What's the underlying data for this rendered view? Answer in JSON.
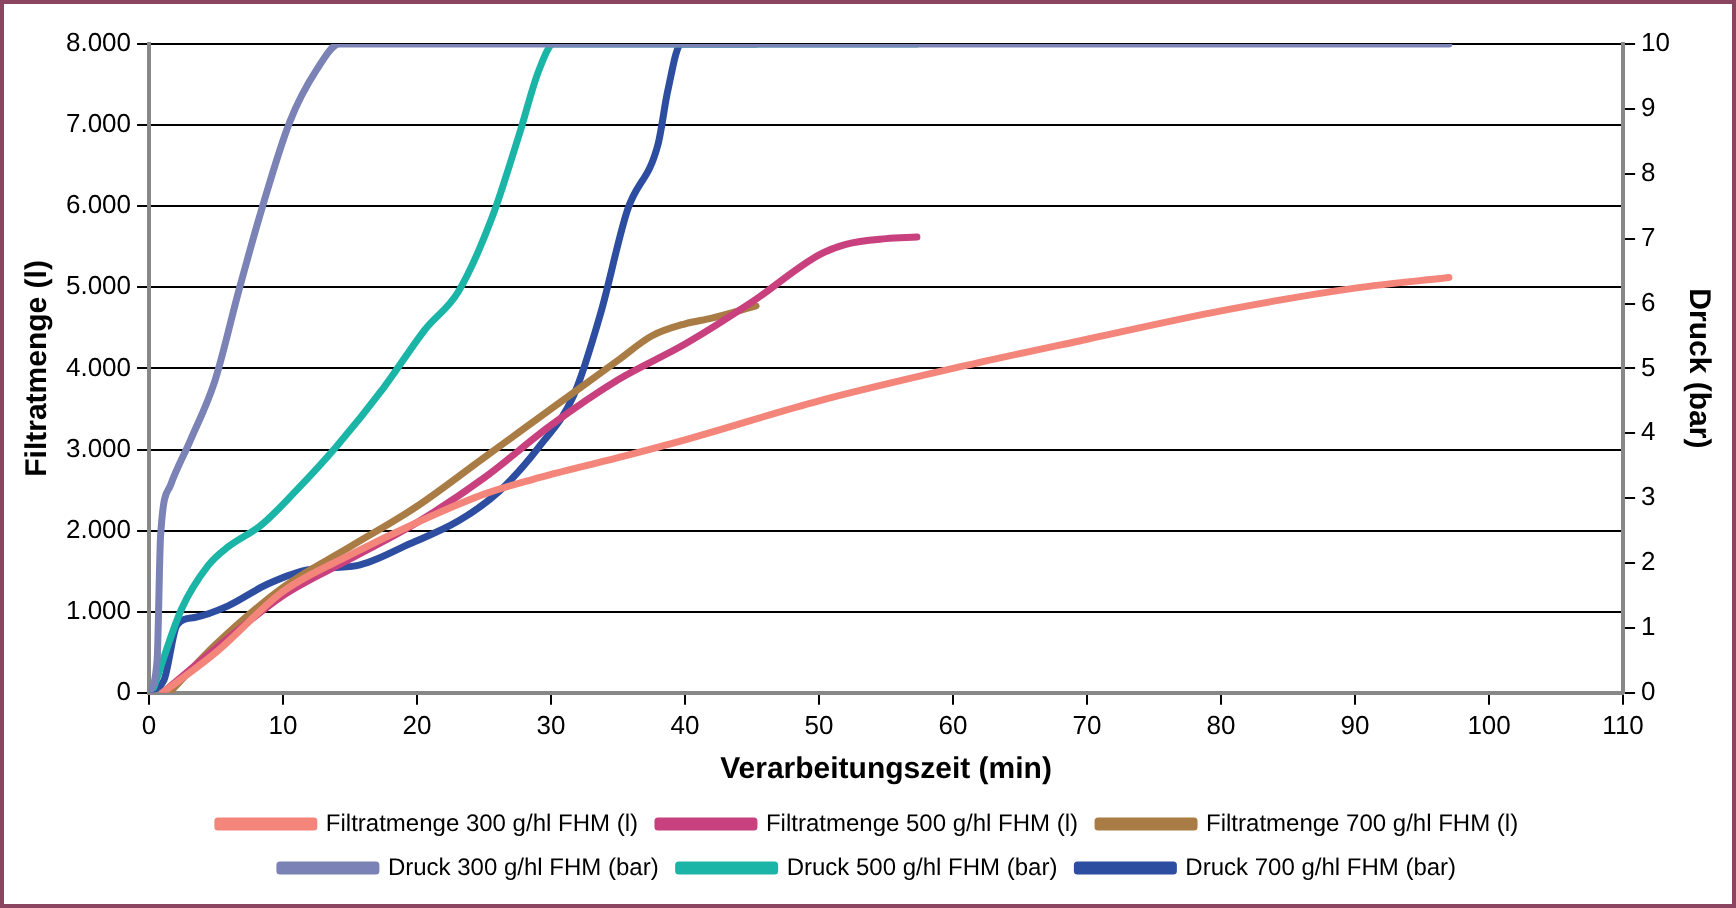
{
  "chart_data": {
    "type": "line",
    "xlabel": "Verarbeitungszeit (min)",
    "ylabel": "Filtratmenge (l)",
    "y2label": "Druck (bar)",
    "xlim": [
      0,
      110
    ],
    "xticks": [
      0,
      10,
      20,
      30,
      40,
      50,
      60,
      70,
      80,
      90,
      100,
      110
    ],
    "ylim": [
      0,
      8000
    ],
    "yticks": [
      0,
      {
        "value": 1000,
        "label": "1.000"
      },
      {
        "value": 2000,
        "label": "2.000"
      },
      {
        "value": 3000,
        "label": "3.000"
      },
      {
        "value": 4000,
        "label": "4.000"
      },
      {
        "value": 5000,
        "label": "5.000"
      },
      {
        "value": 6000,
        "label": "6.000"
      },
      {
        "value": 7000,
        "label": "7.000"
      },
      {
        "value": 8000,
        "label": "8.000"
      }
    ],
    "y2lim": [
      0,
      10
    ],
    "y2ticks": [
      0,
      1,
      2,
      3,
      4,
      5,
      6,
      7,
      8,
      9,
      10
    ],
    "grid": "y",
    "legend": "bottom",
    "marker": "none",
    "line_style": "solid",
    "series": [
      {
        "name": "Filtratmenge 300 g/hl FHM (l)",
        "color": "#f4857a",
        "x": [
          1,
          5,
          10,
          15,
          20,
          25,
          28.6,
          35,
          40,
          50,
          60,
          70,
          80,
          90,
          97
        ],
        "values": [
          0,
          500,
          1250,
          1700,
          2100,
          2450,
          2630,
          2900,
          3120,
          3600,
          4000,
          4360,
          4710,
          4990,
          5120
        ]
      },
      {
        "name": "Filtratmenge 500 g/hl FHM (l)",
        "color": "#c8417e",
        "x": [
          1,
          5,
          10,
          15,
          20,
          25,
          30,
          35,
          40,
          45,
          50,
          52,
          55,
          57.3
        ],
        "values": [
          0,
          550,
          1200,
          1650,
          2100,
          2650,
          3300,
          3860,
          4300,
          4820,
          5400,
          5530,
          5600,
          5620
        ]
      },
      {
        "name": "Filtratmenge 700 g/hl FHM (l)",
        "color": "#a87c44",
        "x": [
          1.5,
          5,
          10,
          15,
          20,
          25,
          30,
          35,
          37.5,
          40,
          42,
          45.3
        ],
        "values": [
          0,
          600,
          1300,
          1800,
          2300,
          2900,
          3500,
          4100,
          4400,
          4550,
          4620,
          4770
        ]
      },
      {
        "name": "Druck 300 g/hl FHM (bar)",
        "color": "#7b82b6",
        "axis": "y2",
        "x": [
          0,
          0.6,
          0.86,
          1.6,
          3.1,
          4.9,
          6.7,
          8.4,
          10.5,
          12.5,
          14.2,
          97
        ],
        "values": [
          0,
          0.5,
          2.42,
          3.2,
          3.9,
          4.8,
          6.2,
          7.45,
          8.8,
          9.6,
          10,
          10
        ]
      },
      {
        "name": "Druck 500 g/hl FHM (bar)",
        "color": "#1bb5a8",
        "axis": "y2",
        "x": [
          0.35,
          2.4,
          4.4,
          5.9,
          8.4,
          10.9,
          14,
          17.5,
          20.6,
          23.1,
          25.6,
          27.6,
          29.1,
          30.2,
          57.3
        ],
        "values": [
          0.08,
          1.28,
          1.96,
          2.25,
          2.59,
          3.1,
          3.8,
          4.7,
          5.6,
          6.19,
          7.33,
          8.59,
          9.6,
          10,
          10
        ]
      },
      {
        "name": "Druck 700 g/hl FHM (bar)",
        "color": "#2d4da0",
        "axis": "y2",
        "x": [
          0,
          1.1,
          2.1,
          3.4,
          5.9,
          8.9,
          12,
          15.5,
          19.5,
          23.1,
          26.1,
          29.1,
          31.7,
          33.7,
          35.7,
          38,
          38.7,
          39.7,
          41.3,
          43.8,
          45.3
        ],
        "values": [
          0.03,
          0.19,
          1.05,
          1.16,
          1.34,
          1.68,
          1.9,
          1.96,
          2.3,
          2.65,
          3.1,
          3.79,
          4.59,
          5.85,
          7.44,
          8.47,
          9.27,
          10,
          10,
          10,
          10
        ]
      }
    ]
  }
}
